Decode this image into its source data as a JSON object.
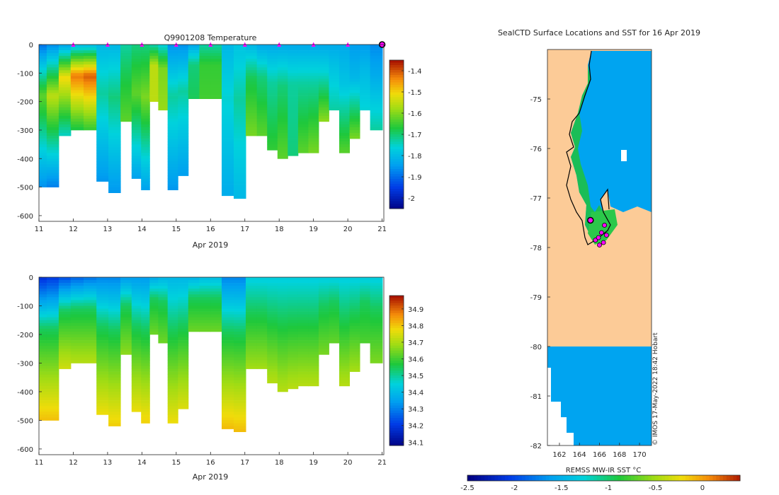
{
  "chart_data": [
    {
      "type": "heatmap",
      "title": "Q9901208  Temperature",
      "xlabel": "Apr 2019",
      "ylabel": "",
      "xlim": [
        11,
        21.05
      ],
      "ylim": [
        -620,
        0
      ],
      "xticks": [
        11,
        12,
        13,
        14,
        15,
        16,
        17,
        18,
        19,
        20,
        21
      ],
      "xtick_labels": [
        "11",
        "12",
        "13",
        "14",
        "15",
        "16",
        "17",
        "18",
        "19",
        "20",
        "21"
      ],
      "yticks": [
        0,
        -100,
        -200,
        -300,
        -400,
        -500,
        -600
      ],
      "ytick_labels": [
        "0",
        "-100",
        "-200",
        "-300",
        "-400",
        "-500",
        "-600"
      ],
      "colorbar": {
        "range": [
          -2.05,
          -1.35
        ],
        "ticks": [
          -1.4,
          -1.5,
          -1.6,
          -1.7,
          -1.8,
          -1.9,
          -2
        ],
        "tick_labels": [
          "-1.4",
          "-1.5",
          "-1.6",
          "-1.7",
          "-1.8",
          "-1.9",
          "-2"
        ]
      },
      "marker_days": [
        12,
        13,
        14,
        15,
        16,
        17,
        18,
        19,
        20
      ],
      "last_marker_day": 21,
      "profiles": [
        {
          "day": 11.05,
          "max_depth": 500,
          "surface": -1.88,
          "mid": -1.62,
          "deep": -1.86
        },
        {
          "day": 11.4,
          "max_depth": 500,
          "surface": -1.85,
          "mid": -1.55,
          "deep": -1.88
        },
        {
          "day": 11.75,
          "max_depth": 320,
          "surface": -1.82,
          "mid": -1.5,
          "deep": -1.75
        },
        {
          "day": 12.1,
          "max_depth": 300,
          "surface": -1.78,
          "mid": -1.42,
          "deep": -1.68
        },
        {
          "day": 12.5,
          "max_depth": 300,
          "surface": -1.78,
          "mid": -1.4,
          "deep": -1.66
        },
        {
          "day": 12.85,
          "max_depth": 475,
          "surface": -1.8,
          "mid": -1.72,
          "deep": -1.85
        },
        {
          "day": 13.2,
          "max_depth": 515,
          "surface": -1.8,
          "mid": -1.7,
          "deep": -1.85
        },
        {
          "day": 13.55,
          "max_depth": 270,
          "surface": -1.72,
          "mid": -1.68,
          "deep": -1.62
        },
        {
          "day": 13.85,
          "max_depth": 470,
          "surface": -1.7,
          "mid": -1.62,
          "deep": -1.84
        },
        {
          "day": 14.1,
          "max_depth": 510,
          "surface": -1.7,
          "mid": -1.6,
          "deep": -1.84
        },
        {
          "day": 14.35,
          "max_depth": 200,
          "surface": -1.72,
          "mid": -1.55,
          "deep": -1.55
        },
        {
          "day": 14.6,
          "max_depth": 230,
          "surface": -1.75,
          "mid": -1.6,
          "deep": -1.58
        },
        {
          "day": 14.9,
          "max_depth": 505,
          "surface": -1.85,
          "mid": -1.72,
          "deep": -1.85
        },
        {
          "day": 15.2,
          "max_depth": 455,
          "surface": -1.85,
          "mid": -1.72,
          "deep": -1.84
        },
        {
          "day": 15.5,
          "max_depth": 190,
          "surface": -1.82,
          "mid": -1.7,
          "deep": -1.68
        },
        {
          "day": 15.85,
          "max_depth": 190,
          "surface": -1.72,
          "mid": -1.65,
          "deep": -1.64
        },
        {
          "day": 16.15,
          "max_depth": 190,
          "surface": -1.72,
          "mid": -1.65,
          "deep": -1.64
        },
        {
          "day": 16.5,
          "max_depth": 525,
          "surface": -1.8,
          "mid": -1.75,
          "deep": -1.82
        },
        {
          "day": 16.85,
          "max_depth": 535,
          "surface": -1.78,
          "mid": -1.72,
          "deep": -1.8
        },
        {
          "day": 17.2,
          "max_depth": 320,
          "surface": -1.8,
          "mid": -1.68,
          "deep": -1.6
        },
        {
          "day": 17.5,
          "max_depth": 320,
          "surface": -1.82,
          "mid": -1.7,
          "deep": -1.62
        },
        {
          "day": 17.8,
          "max_depth": 370,
          "surface": -1.82,
          "mid": -1.72,
          "deep": -1.65
        },
        {
          "day": 18.1,
          "max_depth": 400,
          "surface": -1.82,
          "mid": -1.7,
          "deep": -1.62
        },
        {
          "day": 18.4,
          "max_depth": 385,
          "surface": -1.82,
          "mid": -1.72,
          "deep": -1.7
        },
        {
          "day": 18.7,
          "max_depth": 380,
          "surface": -1.82,
          "mid": -1.72,
          "deep": -1.62
        },
        {
          "day": 19.0,
          "max_depth": 380,
          "surface": -1.82,
          "mid": -1.72,
          "deep": -1.6
        },
        {
          "day": 19.3,
          "max_depth": 270,
          "surface": -1.82,
          "mid": -1.75,
          "deep": -1.58
        },
        {
          "day": 19.6,
          "max_depth": 230,
          "surface": -1.82,
          "mid": -1.78,
          "deep": -1.72
        },
        {
          "day": 19.9,
          "max_depth": 380,
          "surface": -1.82,
          "mid": -1.78,
          "deep": -1.62
        },
        {
          "day": 20.2,
          "max_depth": 325,
          "surface": -1.84,
          "mid": -1.8,
          "deep": -1.6
        },
        {
          "day": 20.5,
          "max_depth": 230,
          "surface": -1.84,
          "mid": -1.8,
          "deep": -1.75
        },
        {
          "day": 20.8,
          "max_depth": 295,
          "surface": -1.86,
          "mid": -1.82,
          "deep": -1.72
        }
      ]
    },
    {
      "type": "heatmap",
      "title": "",
      "xlabel": "Apr 2019",
      "ylabel": "",
      "xlim": [
        11,
        21.05
      ],
      "ylim": [
        -620,
        0
      ],
      "xticks": [
        11,
        12,
        13,
        14,
        15,
        16,
        17,
        18,
        19,
        20,
        21
      ],
      "xtick_labels": [
        "11",
        "12",
        "13",
        "14",
        "15",
        "16",
        "17",
        "18",
        "19",
        "20",
        "21"
      ],
      "yticks": [
        0,
        -100,
        -200,
        -300,
        -400,
        -500,
        -600
      ],
      "ytick_labels": [
        "0",
        "-100",
        "-200",
        "-300",
        "-400",
        "-500",
        "-600"
      ],
      "colorbar": {
        "range": [
          34.08,
          34.98
        ],
        "ticks": [
          34.9,
          34.8,
          34.7,
          34.6,
          34.5,
          34.4,
          34.3,
          34.2,
          34.1
        ],
        "tick_labels": [
          "34.9",
          "34.8",
          "34.7",
          "34.6",
          "34.5",
          "34.4",
          "34.3",
          "34.2",
          "34.1"
        ]
      },
      "profiles": [
        {
          "day": 11.05,
          "max_depth": 500,
          "surface": 34.2,
          "mid": 34.55,
          "deep": 34.82
        },
        {
          "day": 11.4,
          "max_depth": 500,
          "surface": 34.22,
          "mid": 34.55,
          "deep": 34.82
        },
        {
          "day": 11.75,
          "max_depth": 320,
          "surface": 34.25,
          "mid": 34.55,
          "deep": 34.75
        },
        {
          "day": 12.1,
          "max_depth": 300,
          "surface": 34.28,
          "mid": 34.55,
          "deep": 34.72
        },
        {
          "day": 12.5,
          "max_depth": 300,
          "surface": 34.3,
          "mid": 34.55,
          "deep": 34.72
        },
        {
          "day": 12.85,
          "max_depth": 475,
          "surface": 34.32,
          "mid": 34.55,
          "deep": 34.78
        },
        {
          "day": 13.2,
          "max_depth": 515,
          "surface": 34.32,
          "mid": 34.55,
          "deep": 34.8
        },
        {
          "day": 13.55,
          "max_depth": 270,
          "surface": 34.35,
          "mid": 34.55,
          "deep": 34.68
        },
        {
          "day": 13.85,
          "max_depth": 470,
          "surface": 34.35,
          "mid": 34.55,
          "deep": 34.78
        },
        {
          "day": 14.1,
          "max_depth": 510,
          "surface": 34.35,
          "mid": 34.55,
          "deep": 34.8
        },
        {
          "day": 14.35,
          "max_depth": 200,
          "surface": 34.38,
          "mid": 34.55,
          "deep": 34.65
        },
        {
          "day": 14.6,
          "max_depth": 230,
          "surface": 34.4,
          "mid": 34.55,
          "deep": 34.65
        },
        {
          "day": 14.9,
          "max_depth": 505,
          "surface": 34.4,
          "mid": 34.55,
          "deep": 34.78
        },
        {
          "day": 15.2,
          "max_depth": 455,
          "surface": 34.4,
          "mid": 34.55,
          "deep": 34.76
        },
        {
          "day": 15.5,
          "max_depth": 190,
          "surface": 34.4,
          "mid": 34.55,
          "deep": 34.65
        },
        {
          "day": 15.85,
          "max_depth": 190,
          "surface": 34.42,
          "mid": 34.55,
          "deep": 34.65
        },
        {
          "day": 16.15,
          "max_depth": 190,
          "surface": 34.42,
          "mid": 34.55,
          "deep": 34.65
        },
        {
          "day": 16.5,
          "max_depth": 525,
          "surface": 34.32,
          "mid": 34.55,
          "deep": 34.82
        },
        {
          "day": 16.85,
          "max_depth": 535,
          "surface": 34.32,
          "mid": 34.55,
          "deep": 34.82
        },
        {
          "day": 17.2,
          "max_depth": 320,
          "surface": 34.45,
          "mid": 34.55,
          "deep": 34.7
        },
        {
          "day": 17.5,
          "max_depth": 320,
          "surface": 34.45,
          "mid": 34.55,
          "deep": 34.7
        },
        {
          "day": 17.8,
          "max_depth": 370,
          "surface": 34.45,
          "mid": 34.55,
          "deep": 34.72
        },
        {
          "day": 18.1,
          "max_depth": 400,
          "surface": 34.45,
          "mid": 34.55,
          "deep": 34.72
        },
        {
          "day": 18.4,
          "max_depth": 385,
          "surface": 34.45,
          "mid": 34.55,
          "deep": 34.72
        },
        {
          "day": 18.7,
          "max_depth": 380,
          "surface": 34.45,
          "mid": 34.55,
          "deep": 34.72
        },
        {
          "day": 19.0,
          "max_depth": 380,
          "surface": 34.45,
          "mid": 34.55,
          "deep": 34.72
        },
        {
          "day": 19.3,
          "max_depth": 270,
          "surface": 34.45,
          "mid": 34.55,
          "deep": 34.66
        },
        {
          "day": 19.6,
          "max_depth": 230,
          "surface": 34.45,
          "mid": 34.55,
          "deep": 34.64
        },
        {
          "day": 19.9,
          "max_depth": 380,
          "surface": 34.45,
          "mid": 34.55,
          "deep": 34.72
        },
        {
          "day": 20.2,
          "max_depth": 325,
          "surface": 34.45,
          "mid": 34.55,
          "deep": 34.7
        },
        {
          "day": 20.5,
          "max_depth": 230,
          "surface": 34.45,
          "mid": 34.55,
          "deep": 34.62
        },
        {
          "day": 20.8,
          "max_depth": 295,
          "surface": 34.45,
          "mid": 34.55,
          "deep": 34.66
        }
      ]
    },
    {
      "type": "heatmap",
      "title": "SealCTD Surface Locations and SST for 16 Apr 2019",
      "xlabel": "",
      "ylabel": "",
      "xlim": [
        160.8,
        171.2
      ],
      "ylim": [
        -82,
        -74
      ],
      "xticks": [
        162,
        164,
        166,
        168,
        170
      ],
      "xtick_labels": [
        "162",
        "164",
        "166",
        "168",
        "170"
      ],
      "yticks": [
        -75,
        -76,
        -77,
        -78,
        -79,
        -80,
        -81,
        -82
      ],
      "ytick_labels": [
        "-75",
        "-76",
        "-77",
        "-78",
        "-79",
        "-80",
        "-81",
        "-82"
      ],
      "colorbar": {
        "label": "REMSS MW-IR SST °C",
        "range": [
          -2.5,
          0.4
        ],
        "ticks": [
          -2.5,
          -2,
          -1.5,
          -1,
          -0.5,
          0
        ],
        "tick_labels": [
          "-2.5",
          "-2",
          "-1.5",
          "-1",
          "-0.5",
          "0"
        ]
      },
      "sst_value": -1.75,
      "ice_shelf_edge_lat": -80,
      "seal_locations": [
        {
          "lon": 165.1,
          "lat": -77.45
        },
        {
          "lon": 165.6,
          "lat": -77.85
        },
        {
          "lon": 165.9,
          "lat": -77.8
        },
        {
          "lon": 166.2,
          "lat": -77.7
        },
        {
          "lon": 166.4,
          "lat": -77.9
        },
        {
          "lon": 166.7,
          "lat": -77.75
        },
        {
          "lon": 166.5,
          "lat": -77.55
        },
        {
          "lon": 166.0,
          "lat": -77.95
        }
      ],
      "credit": "© IMOS 17-May-2022 18:42 Hobart"
    }
  ]
}
